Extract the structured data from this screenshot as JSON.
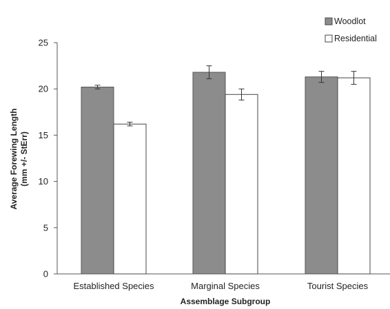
{
  "chart_data": {
    "type": "bar",
    "title": "",
    "xlabel": "Assemblage Subgroup",
    "ylabel_lines": [
      "Average Forewing Length",
      "(mm +/- StErr)"
    ],
    "categories": [
      "Established Species",
      "Marginal Species",
      "Tourist Species"
    ],
    "ylim": [
      0,
      25
    ],
    "yticks": [
      0,
      5,
      10,
      15,
      20,
      25
    ],
    "grid": false,
    "legend_position": "top-right",
    "series": [
      {
        "name": "Woodlot",
        "values": [
          20.2,
          21.8,
          21.3
        ],
        "errors": [
          0.2,
          0.7,
          0.6
        ],
        "color": "#8c8c8c"
      },
      {
        "name": "Residential",
        "values": [
          16.2,
          19.4,
          21.2
        ],
        "errors": [
          0.2,
          0.6,
          0.7
        ],
        "color": "#ffffff"
      }
    ]
  }
}
